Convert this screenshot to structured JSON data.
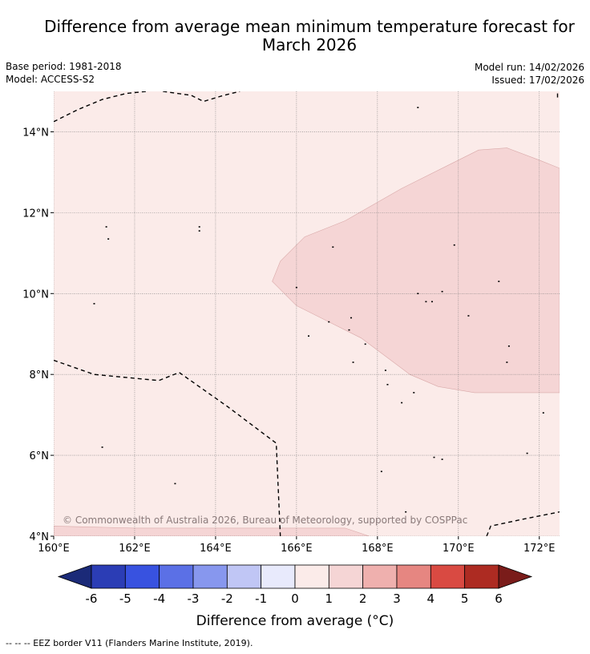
{
  "title_line1": "Difference from average mean minimum temperature forecast for",
  "title_line2": "March 2026",
  "base_period": "Base period: 1981-2018",
  "model": "Model: ACCESS-S2",
  "model_run": "Model run: 14/02/2026",
  "issued": "Issued: 17/02/2026",
  "copyright": "© Commonwealth of Australia 2026, Bureau of Meteorology, supported by COSPPac",
  "map": {
    "lon_range": [
      160,
      172.5
    ],
    "lat_range": [
      4,
      15
    ],
    "lon_ticks": [
      {
        "value": 160,
        "label": "160°E"
      },
      {
        "value": 162,
        "label": "162°E"
      },
      {
        "value": 164,
        "label": "164°E"
      },
      {
        "value": 166,
        "label": "166°E"
      },
      {
        "value": 168,
        "label": "168°E"
      },
      {
        "value": 170,
        "label": "170°E"
      },
      {
        "value": 172,
        "label": "172°E"
      }
    ],
    "lat_ticks": [
      {
        "value": 4,
        "label": "4°N"
      },
      {
        "value": 6,
        "label": "6°N"
      },
      {
        "value": 8,
        "label": "8°N"
      },
      {
        "value": 10,
        "label": "10°N"
      },
      {
        "value": 12,
        "label": "12°N"
      },
      {
        "value": 14,
        "label": "14°N"
      }
    ],
    "background_class": "0 to 1",
    "background_color": "#fbebe9",
    "anomaly_regions": [
      {
        "class": "1 to 2",
        "color": "#f5d5d5",
        "polygon": [
          [
            165.4,
            10.3
          ],
          [
            165.6,
            10.8
          ],
          [
            166.2,
            11.4
          ],
          [
            167.2,
            11.8
          ],
          [
            168.6,
            12.6
          ],
          [
            170.0,
            13.3
          ],
          [
            170.5,
            13.55
          ],
          [
            171.2,
            13.6
          ],
          [
            172.0,
            13.3
          ],
          [
            172.5,
            13.1
          ],
          [
            172.5,
            7.55
          ],
          [
            170.4,
            7.55
          ],
          [
            169.5,
            7.7
          ],
          [
            168.8,
            8.0
          ],
          [
            167.6,
            8.9
          ],
          [
            166.8,
            9.3
          ],
          [
            166.0,
            9.7
          ],
          [
            165.4,
            10.3
          ]
        ]
      },
      {
        "class": "1 to 2",
        "color": "#f5d5d5",
        "polygon": [
          [
            160,
            4.25
          ],
          [
            162,
            4.2
          ],
          [
            164,
            4.2
          ],
          [
            166.1,
            4.2
          ],
          [
            167.2,
            4.2
          ],
          [
            167.8,
            4.0
          ],
          [
            160,
            4.0
          ]
        ]
      }
    ],
    "eez_borders": [
      [
        [
          160,
          14.25
        ],
        [
          160.6,
          14.55
        ],
        [
          161.2,
          14.8
        ],
        [
          161.8,
          14.95
        ],
        [
          162.3,
          15.0
        ]
      ],
      [
        [
          162.7,
          15.0
        ],
        [
          163.4,
          14.9
        ],
        [
          163.7,
          14.75
        ],
        [
          164.2,
          14.9
        ],
        [
          164.6,
          15.0
        ]
      ],
      [
        [
          172.45,
          14.85
        ],
        [
          172.45,
          15.0
        ]
      ],
      [
        [
          160,
          8.35
        ],
        [
          161.0,
          8.0
        ],
        [
          162.6,
          7.85
        ],
        [
          163.1,
          8.05
        ],
        [
          164.3,
          7.2
        ],
        [
          165.5,
          6.3
        ],
        [
          165.6,
          4.0
        ]
      ],
      [
        [
          170.7,
          4.0
        ],
        [
          170.8,
          4.25
        ],
        [
          171.5,
          4.4
        ],
        [
          172.5,
          4.6
        ]
      ]
    ],
    "islands": [
      [
        169.0,
        14.6
      ],
      [
        161.3,
        11.65
      ],
      [
        161.35,
        11.35
      ],
      [
        163.6,
        11.65
      ],
      [
        163.6,
        11.55
      ],
      [
        166.9,
        11.15
      ],
      [
        169.9,
        11.2
      ],
      [
        161.0,
        9.75
      ],
      [
        166.0,
        10.15
      ],
      [
        169.0,
        10.0
      ],
      [
        169.6,
        10.05
      ],
      [
        171.0,
        10.3
      ],
      [
        169.2,
        9.8
      ],
      [
        169.35,
        9.8
      ],
      [
        170.25,
        9.45
      ],
      [
        167.35,
        9.4
      ],
      [
        166.8,
        9.3
      ],
      [
        167.3,
        9.1
      ],
      [
        166.3,
        8.95
      ],
      [
        167.7,
        8.75
      ],
      [
        171.25,
        8.7
      ],
      [
        171.2,
        8.3
      ],
      [
        167.4,
        8.3
      ],
      [
        168.2,
        8.1
      ],
      [
        168.25,
        7.75
      ],
      [
        168.9,
        7.55
      ],
      [
        168.6,
        7.3
      ],
      [
        172.1,
        7.05
      ],
      [
        161.2,
        6.2
      ],
      [
        169.4,
        5.95
      ],
      [
        169.6,
        5.9
      ],
      [
        171.7,
        6.05
      ],
      [
        168.1,
        5.6
      ],
      [
        163.0,
        5.3
      ],
      [
        168.7,
        4.6
      ]
    ]
  },
  "colorbar": {
    "classes": [
      {
        "label": "< -6",
        "color": "#1b2a78"
      },
      {
        "label": "-6 to -5",
        "color": "#2b3db5"
      },
      {
        "label": "-5 to -4",
        "color": "#3852e0"
      },
      {
        "label": "-4 to -3",
        "color": "#5b70e6"
      },
      {
        "label": "-3 to -2",
        "color": "#8797ee"
      },
      {
        "label": "-2 to -1",
        "color": "#c0c6f5"
      },
      {
        "label": "-1 to 0",
        "color": "#e8eafc"
      },
      {
        "label": "0 to 1",
        "color": "#fbebe9"
      },
      {
        "label": "1 to 2",
        "color": "#f5d5d5"
      },
      {
        "label": "2 to 3",
        "color": "#efb0ae"
      },
      {
        "label": "3 to 4",
        "color": "#e68681"
      },
      {
        "label": "4 to 5",
        "color": "#d94a42"
      },
      {
        "label": "5 to 6",
        "color": "#ad2b22"
      },
      {
        "label": "> 6",
        "color": "#7a1c1a"
      }
    ],
    "tick_labels": [
      "-6",
      "-5",
      "-4",
      "-3",
      "-2",
      "-1",
      "0",
      "1",
      "2",
      "3",
      "4",
      "5",
      "6"
    ],
    "label": "Difference from average (°C)"
  },
  "footer": "-- -- -- EEZ border V11 (Flanders Marine Institute, 2019)."
}
